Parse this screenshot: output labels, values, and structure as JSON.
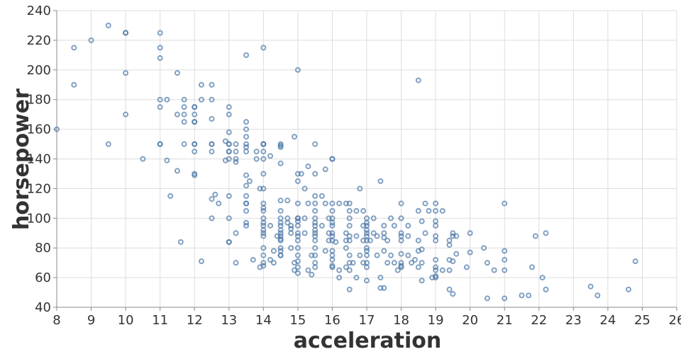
{
  "chart_data": {
    "type": "scatter",
    "xlabel": "acceleration",
    "ylabel": "horsepower",
    "xlim": [
      8,
      26
    ],
    "ylim": [
      40,
      240
    ],
    "x_ticks": [
      8,
      9,
      10,
      11,
      12,
      13,
      14,
      15,
      16,
      17,
      18,
      19,
      20,
      21,
      22,
      23,
      24,
      25,
      26
    ],
    "y_ticks": [
      40,
      60,
      80,
      100,
      120,
      140,
      160,
      180,
      200,
      220,
      240
    ],
    "grid": true,
    "point_color": "#4c78a8",
    "points": [
      [
        8,
        160
      ],
      [
        8.5,
        215
      ],
      [
        8.5,
        190
      ],
      [
        9,
        220
      ],
      [
        9.5,
        230
      ],
      [
        9.5,
        150
      ],
      [
        10,
        225
      ],
      [
        10,
        225
      ],
      [
        10,
        198
      ],
      [
        10,
        170
      ],
      [
        10.5,
        140
      ],
      [
        11,
        225
      ],
      [
        11,
        215
      ],
      [
        11,
        208
      ],
      [
        11,
        180
      ],
      [
        11,
        175
      ],
      [
        11,
        150
      ],
      [
        11,
        150
      ],
      [
        11.2,
        180
      ],
      [
        11.2,
        139
      ],
      [
        11.3,
        115
      ],
      [
        11.5,
        170
      ],
      [
        11.5,
        132
      ],
      [
        11.5,
        198
      ],
      [
        11.6,
        84
      ],
      [
        11.7,
        180
      ],
      [
        11.7,
        175
      ],
      [
        11.7,
        170
      ],
      [
        11.7,
        165
      ],
      [
        11.7,
        150
      ],
      [
        12,
        175
      ],
      [
        12,
        175
      ],
      [
        12,
        170
      ],
      [
        12,
        165
      ],
      [
        12,
        165
      ],
      [
        12,
        150
      ],
      [
        12,
        150
      ],
      [
        12,
        145
      ],
      [
        12,
        130
      ],
      [
        12,
        129
      ],
      [
        12.2,
        190
      ],
      [
        12.2,
        180
      ],
      [
        12.2,
        71
      ],
      [
        12.5,
        190
      ],
      [
        12.5,
        180
      ],
      [
        12.5,
        167
      ],
      [
        12.5,
        150
      ],
      [
        12.5,
        150
      ],
      [
        12.5,
        145
      ],
      [
        12.5,
        113
      ],
      [
        12.5,
        100
      ],
      [
        12.6,
        116
      ],
      [
        12.7,
        110
      ],
      [
        12.9,
        152
      ],
      [
        12.9,
        139
      ],
      [
        13,
        115
      ],
      [
        13,
        84
      ],
      [
        13,
        175
      ],
      [
        13,
        170
      ],
      [
        13,
        158
      ],
      [
        13,
        150
      ],
      [
        13,
        150
      ],
      [
        13,
        145
      ],
      [
        13,
        145
      ],
      [
        13,
        140
      ],
      [
        13,
        100
      ],
      [
        13,
        84
      ],
      [
        13.2,
        150
      ],
      [
        13.2,
        145
      ],
      [
        13.2,
        140
      ],
      [
        13.2,
        138
      ],
      [
        13.2,
        90
      ],
      [
        13.2,
        70
      ],
      [
        13.5,
        165
      ],
      [
        13.5,
        160
      ],
      [
        13.5,
        155
      ],
      [
        13.5,
        150
      ],
      [
        13.5,
        148
      ],
      [
        13.5,
        145
      ],
      [
        13.5,
        129
      ],
      [
        13.5,
        122
      ],
      [
        13.5,
        115
      ],
      [
        13.5,
        110
      ],
      [
        13.5,
        110
      ],
      [
        13.5,
        105
      ],
      [
        13.5,
        97
      ],
      [
        13.5,
        95
      ],
      [
        13.5,
        210
      ],
      [
        13.6,
        125
      ],
      [
        13.7,
        72
      ],
      [
        13.8,
        145
      ],
      [
        13.8,
        140
      ],
      [
        13.9,
        120
      ],
      [
        14,
        120
      ],
      [
        13.9,
        67
      ],
      [
        14,
        150
      ],
      [
        14,
        150
      ],
      [
        14,
        150
      ],
      [
        14,
        145
      ],
      [
        14,
        140
      ],
      [
        14,
        130
      ],
      [
        14,
        110
      ],
      [
        14,
        107
      ],
      [
        14,
        105
      ],
      [
        14,
        100
      ],
      [
        14,
        97
      ],
      [
        14,
        95
      ],
      [
        14,
        92
      ],
      [
        14,
        90
      ],
      [
        14,
        88
      ],
      [
        14,
        80
      ],
      [
        14,
        75
      ],
      [
        14,
        70
      ],
      [
        14,
        68
      ],
      [
        14,
        215
      ],
      [
        14.2,
        142
      ],
      [
        14.2,
        95
      ],
      [
        14.2,
        72
      ],
      [
        14.3,
        78
      ],
      [
        14.3,
        70
      ],
      [
        14.4,
        88
      ],
      [
        14.5,
        150
      ],
      [
        14.5,
        149
      ],
      [
        14.5,
        148
      ],
      [
        14.5,
        137
      ],
      [
        14.5,
        112
      ],
      [
        14.5,
        105
      ],
      [
        14.5,
        100
      ],
      [
        14.5,
        97
      ],
      [
        14.5,
        95
      ],
      [
        14.5,
        92
      ],
      [
        14.5,
        90
      ],
      [
        14.5,
        88
      ],
      [
        14.5,
        86
      ],
      [
        14.5,
        85
      ],
      [
        14.5,
        80
      ],
      [
        14.5,
        78
      ],
      [
        14.5,
        75
      ],
      [
        14.5,
        75
      ],
      [
        14.7,
        112
      ],
      [
        14.7,
        100
      ],
      [
        14.7,
        97
      ],
      [
        14.8,
        95
      ],
      [
        14.8,
        93
      ],
      [
        14.8,
        90
      ],
      [
        14.8,
        80
      ],
      [
        14.9,
        155
      ],
      [
        14.9,
        70
      ],
      [
        14.9,
        65
      ],
      [
        15,
        200
      ],
      [
        15,
        130
      ],
      [
        15,
        125
      ],
      [
        15,
        110
      ],
      [
        15,
        100
      ],
      [
        15,
        100
      ],
      [
        15,
        98
      ],
      [
        15,
        95
      ],
      [
        15,
        90
      ],
      [
        15,
        88
      ],
      [
        15,
        85
      ],
      [
        15,
        80
      ],
      [
        15,
        75
      ],
      [
        15,
        71
      ],
      [
        15,
        67
      ],
      [
        15,
        63
      ],
      [
        15.1,
        130
      ],
      [
        15.2,
        120
      ],
      [
        15.2,
        100
      ],
      [
        15.2,
        90
      ],
      [
        15.3,
        135
      ],
      [
        15.3,
        110
      ],
      [
        15.3,
        65
      ],
      [
        15.4,
        75
      ],
      [
        15.4,
        62
      ],
      [
        15.5,
        150
      ],
      [
        15.5,
        130
      ],
      [
        15.5,
        115
      ],
      [
        15.5,
        110
      ],
      [
        15.5,
        105
      ],
      [
        15.5,
        100
      ],
      [
        15.5,
        97
      ],
      [
        15.5,
        95
      ],
      [
        15.5,
        92
      ],
      [
        15.5,
        90
      ],
      [
        15.5,
        88
      ],
      [
        15.5,
        85
      ],
      [
        15.5,
        80
      ],
      [
        15.5,
        75
      ],
      [
        15.5,
        70
      ],
      [
        15.5,
        67
      ],
      [
        15.7,
        115
      ],
      [
        15.7,
        95
      ],
      [
        15.8,
        133
      ],
      [
        15.8,
        110
      ],
      [
        15.8,
        78
      ],
      [
        15.9,
        100
      ],
      [
        15.9,
        90
      ],
      [
        15.9,
        85
      ],
      [
        16,
        140
      ],
      [
        16,
        140
      ],
      [
        16,
        110
      ],
      [
        16,
        105
      ],
      [
        16,
        100
      ],
      [
        16,
        97
      ],
      [
        16,
        95
      ],
      [
        16,
        90
      ],
      [
        16,
        88
      ],
      [
        16,
        85
      ],
      [
        16,
        78
      ],
      [
        16,
        75
      ],
      [
        16,
        72
      ],
      [
        16,
        68
      ],
      [
        16,
        67
      ],
      [
        16.1,
        84
      ],
      [
        16.2,
        110
      ],
      [
        16.2,
        65
      ],
      [
        16.2,
        60
      ],
      [
        16.4,
        110
      ],
      [
        16.4,
        90
      ],
      [
        16.4,
        85
      ],
      [
        16.4,
        80
      ],
      [
        16.4,
        67
      ],
      [
        16.5,
        110
      ],
      [
        16.5,
        105
      ],
      [
        16.5,
        100
      ],
      [
        16.5,
        95
      ],
      [
        16.5,
        88
      ],
      [
        16.5,
        85
      ],
      [
        16.5,
        75
      ],
      [
        16.5,
        70
      ],
      [
        16.5,
        65
      ],
      [
        16.5,
        52
      ],
      [
        16.6,
        70
      ],
      [
        16.7,
        105
      ],
      [
        16.7,
        88
      ],
      [
        16.7,
        60
      ],
      [
        16.8,
        120
      ],
      [
        16.8,
        75
      ],
      [
        16.9,
        105
      ],
      [
        16.9,
        95
      ],
      [
        16.9,
        85
      ],
      [
        16.9,
        70
      ],
      [
        17,
        100
      ],
      [
        17,
        97
      ],
      [
        17,
        95
      ],
      [
        17,
        92
      ],
      [
        17,
        90
      ],
      [
        17,
        88
      ],
      [
        17,
        85
      ],
      [
        17,
        80
      ],
      [
        17,
        78
      ],
      [
        17,
        75
      ],
      [
        17,
        70
      ],
      [
        17,
        67
      ],
      [
        17,
        58
      ],
      [
        17.1,
        85
      ],
      [
        17.2,
        100
      ],
      [
        17.2,
        90
      ],
      [
        17.3,
        88
      ],
      [
        17.3,
        75
      ],
      [
        17.4,
        125
      ],
      [
        17.4,
        60
      ],
      [
        17.4,
        53
      ],
      [
        17.5,
        95
      ],
      [
        17.5,
        90
      ],
      [
        17.5,
        87
      ],
      [
        17.5,
        78
      ],
      [
        17.5,
        53
      ],
      [
        17.6,
        85
      ],
      [
        17.6,
        70
      ],
      [
        17.7,
        100
      ],
      [
        17.7,
        75
      ],
      [
        17.8,
        95
      ],
      [
        17.8,
        70
      ],
      [
        17.9,
        65
      ],
      [
        18,
        110
      ],
      [
        18,
        100
      ],
      [
        18,
        90
      ],
      [
        18,
        88
      ],
      [
        18,
        85
      ],
      [
        18,
        76
      ],
      [
        18,
        70
      ],
      [
        18,
        68
      ],
      [
        18,
        67
      ],
      [
        18.2,
        95
      ],
      [
        18.2,
        75
      ],
      [
        18.2,
        88
      ],
      [
        18.3,
        70
      ],
      [
        18.4,
        72
      ],
      [
        18.5,
        193
      ],
      [
        18.5,
        105
      ],
      [
        18.5,
        85
      ],
      [
        18.5,
        78
      ],
      [
        18.5,
        67
      ],
      [
        18.6,
        98
      ],
      [
        18.6,
        79
      ],
      [
        18.6,
        70
      ],
      [
        18.6,
        58
      ],
      [
        18.7,
        110
      ],
      [
        18.7,
        90
      ],
      [
        18.8,
        105
      ],
      [
        18.9,
        60
      ],
      [
        19,
        110
      ],
      [
        19,
        105
      ],
      [
        19,
        98
      ],
      [
        19,
        95
      ],
      [
        19,
        88
      ],
      [
        19,
        85
      ],
      [
        19,
        72
      ],
      [
        19,
        67
      ],
      [
        19,
        65
      ],
      [
        19,
        61
      ],
      [
        19,
        60
      ],
      [
        19.2,
        105
      ],
      [
        19.2,
        65
      ],
      [
        19.4,
        85
      ],
      [
        19.4,
        82
      ],
      [
        19.4,
        72
      ],
      [
        19.4,
        65
      ],
      [
        19.4,
        52
      ],
      [
        19.5,
        90
      ],
      [
        19.5,
        88
      ],
      [
        19.5,
        71
      ],
      [
        19.5,
        49
      ],
      [
        19.6,
        76
      ],
      [
        19.6,
        88
      ],
      [
        19.9,
        67
      ],
      [
        20,
        90
      ],
      [
        20,
        77
      ],
      [
        20.4,
        80
      ],
      [
        20.5,
        70
      ],
      [
        20.5,
        46
      ],
      [
        20.7,
        65
      ],
      [
        21,
        110
      ],
      [
        21,
        78
      ],
      [
        21,
        72
      ],
      [
        21,
        65
      ],
      [
        21,
        46
      ],
      [
        21.5,
        48
      ],
      [
        21.7,
        48
      ],
      [
        21.8,
        67
      ],
      [
        21.9,
        88
      ],
      [
        22.1,
        60
      ],
      [
        22.2,
        90
      ],
      [
        22.2,
        52
      ],
      [
        23.5,
        54
      ],
      [
        23.7,
        48
      ],
      [
        24.6,
        52
      ],
      [
        24.8,
        71
      ]
    ]
  }
}
